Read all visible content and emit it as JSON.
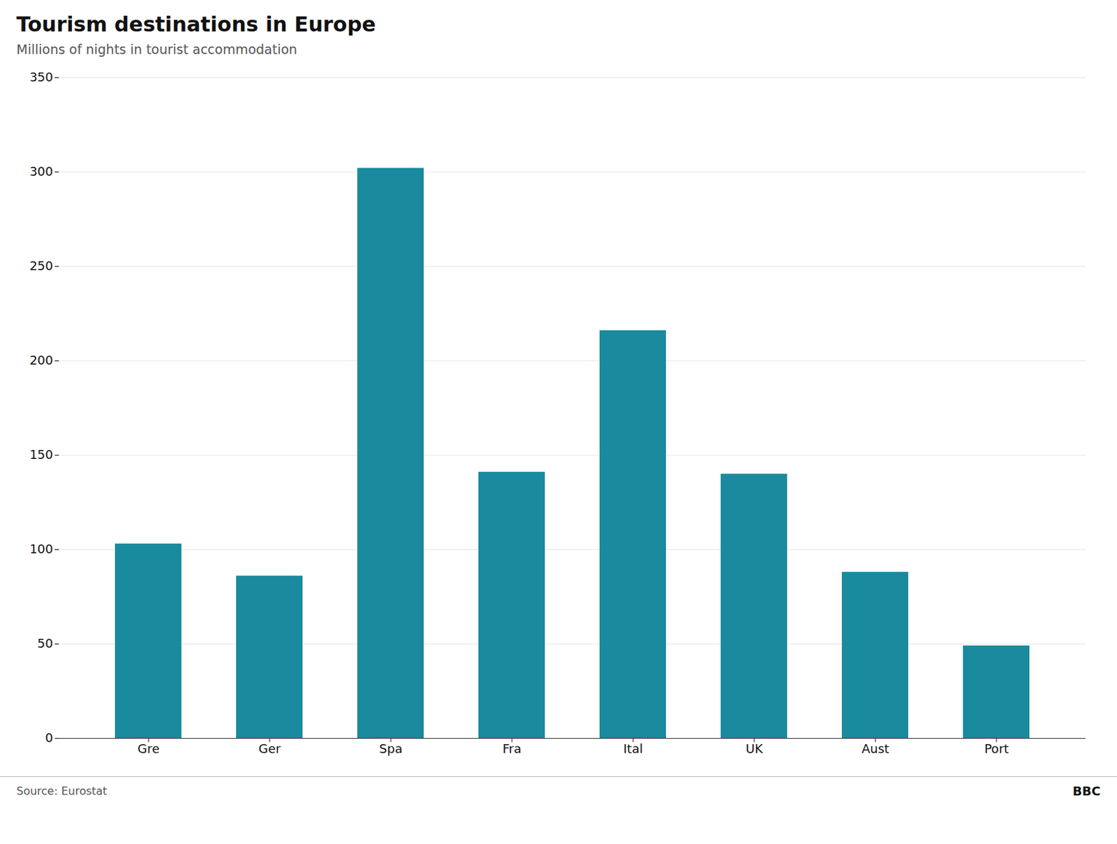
{
  "chart_data": {
    "type": "bar",
    "title": "Tourism destinations in Europe",
    "subtitle": "Millions of nights in tourist accommodation",
    "categories": [
      "Gre",
      "Ger",
      "Spa",
      "Fra",
      "Ital",
      "UK",
      "Aust",
      "Port"
    ],
    "values": [
      103,
      86,
      302,
      141,
      216,
      140,
      88,
      49
    ],
    "color": "#1a8a9e",
    "ylim": [
      0,
      350
    ],
    "yticks": [
      0,
      50,
      100,
      150,
      200,
      250,
      300,
      350
    ],
    "grid": true,
    "annotations": [
      "Source: Eurostat",
      "BBC"
    ]
  }
}
